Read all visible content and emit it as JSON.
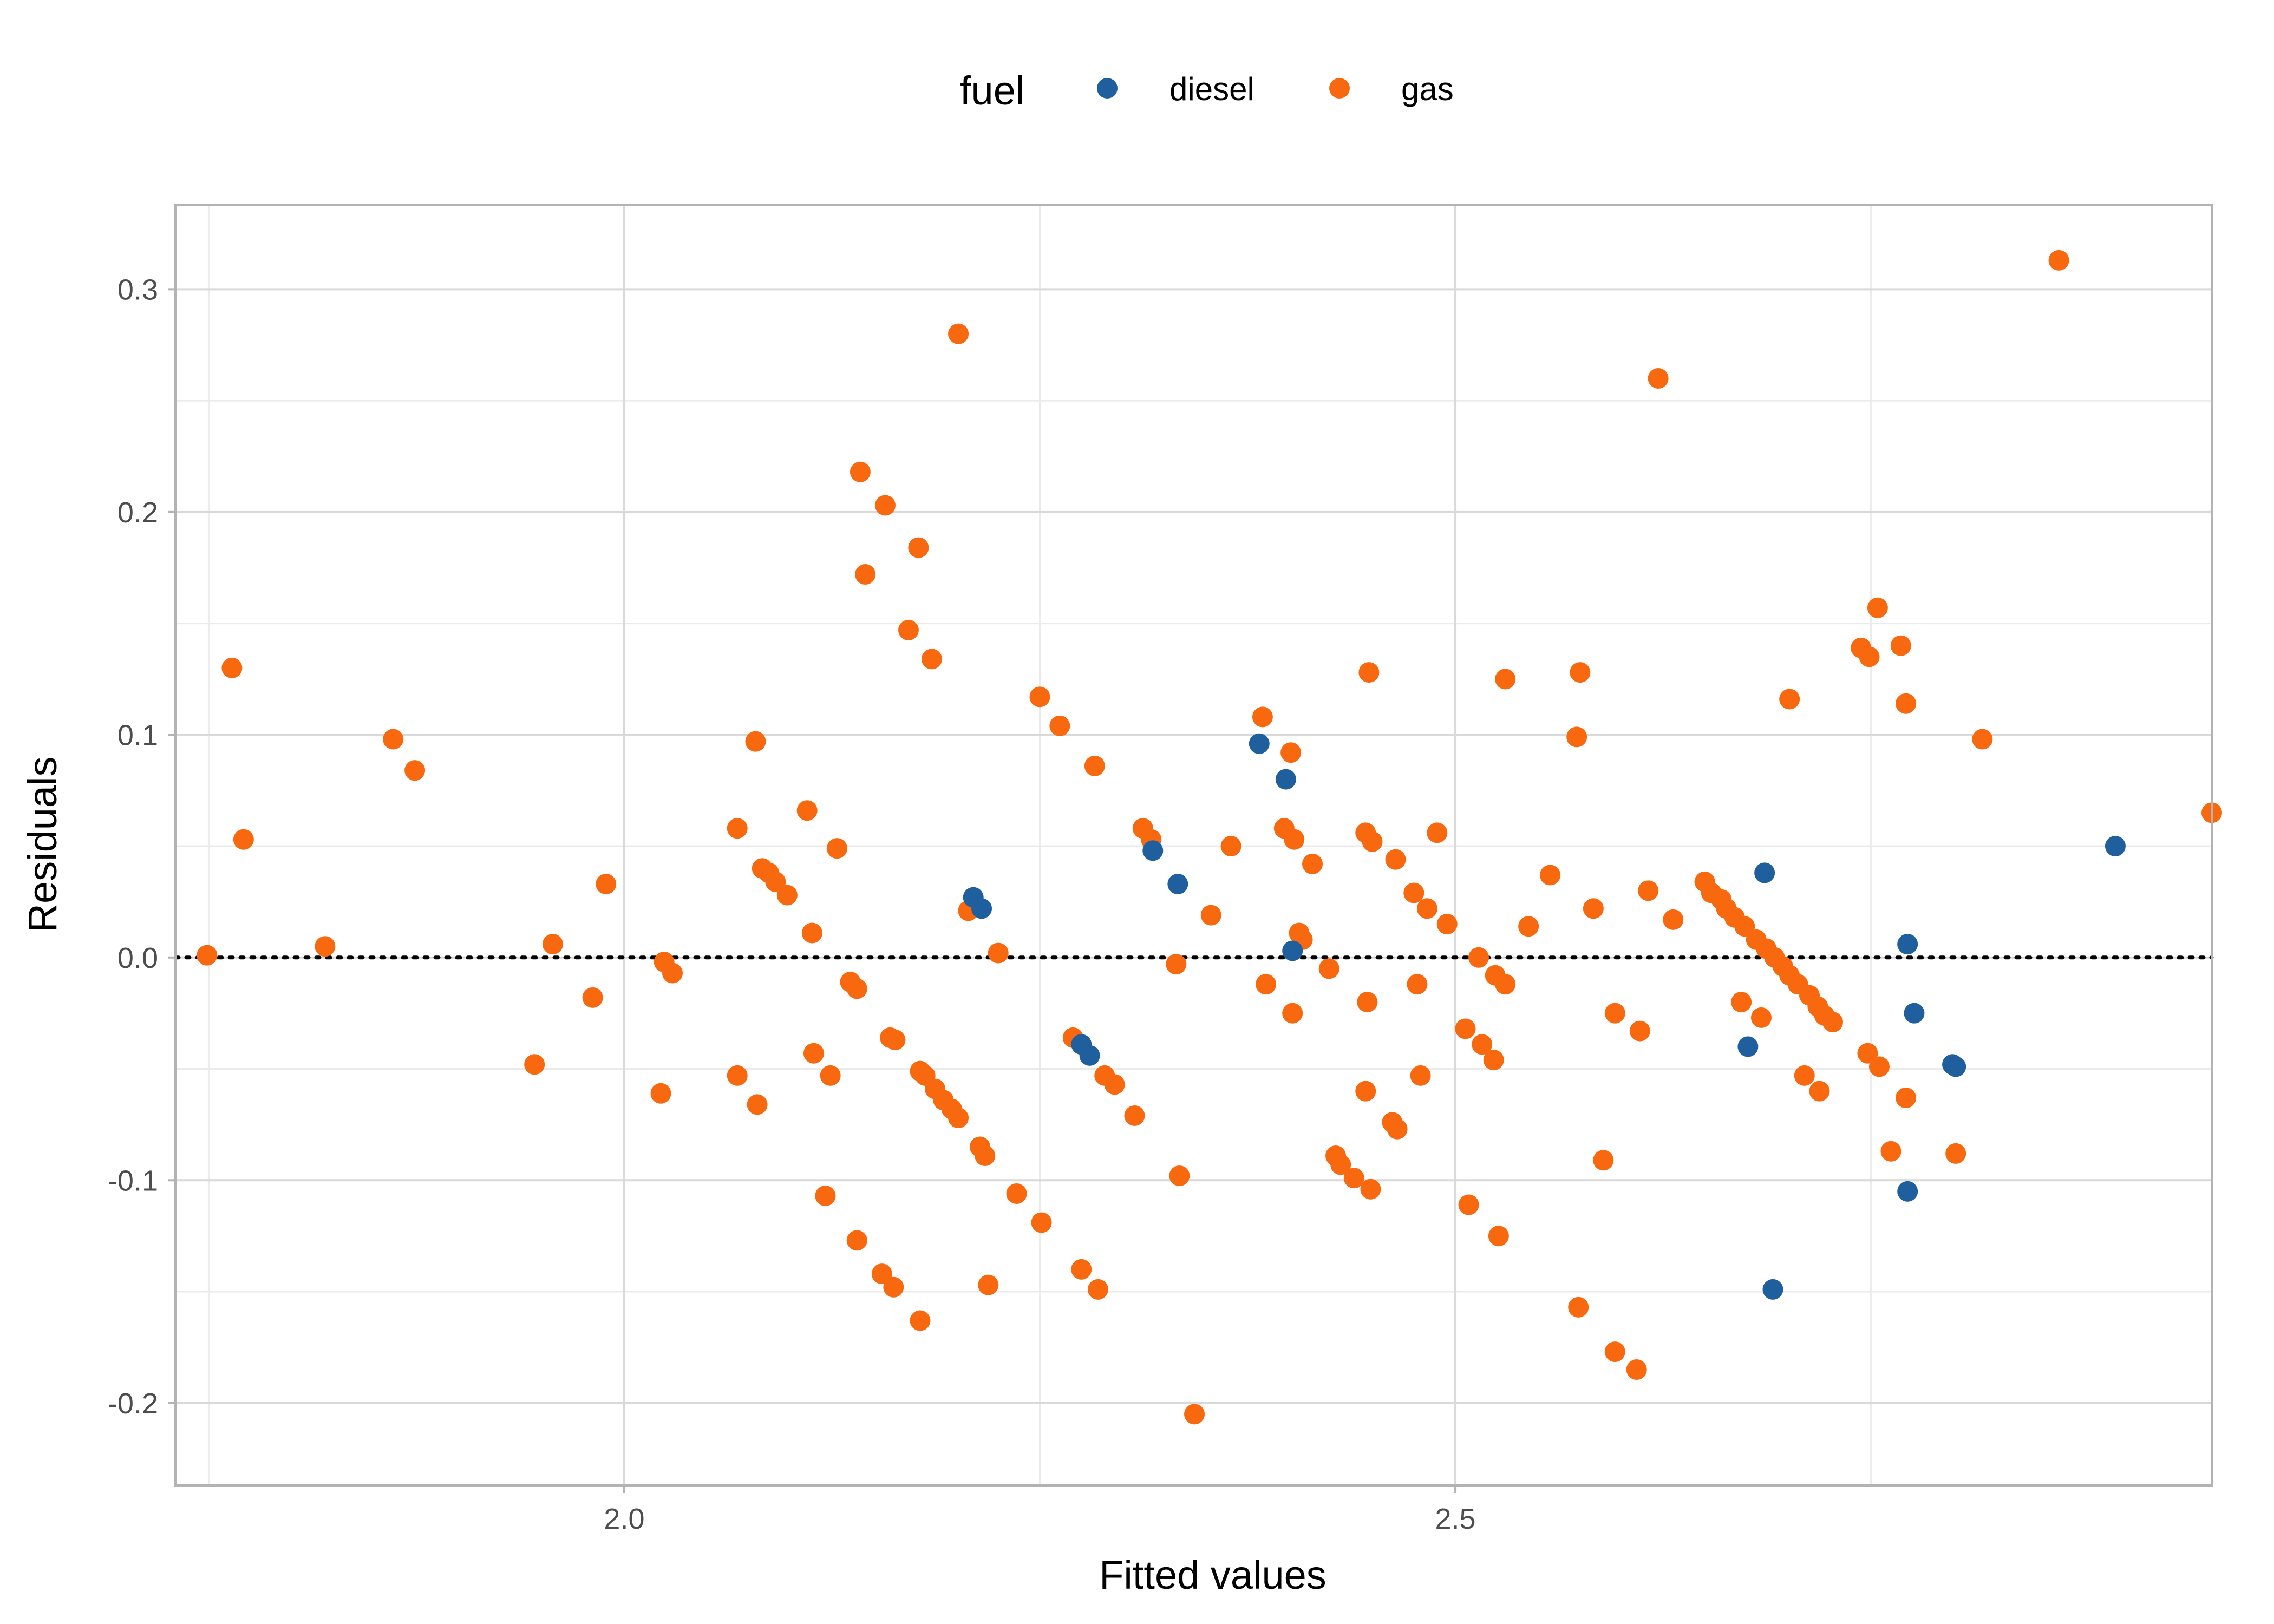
{
  "chart_data": {
    "type": "scatter",
    "xlabel": "Fitted values",
    "ylabel": "Residuals",
    "xlim": [
      1.73,
      2.955
    ],
    "ylim": [
      -0.237,
      0.338
    ],
    "x_ticks": [
      2.0,
      2.5
    ],
    "x_tick_labels": [
      "2.0",
      "2.5"
    ],
    "y_ticks": [
      -0.2,
      -0.1,
      0.0,
      0.1,
      0.2,
      0.3
    ],
    "y_tick_labels": [
      "-0.2",
      "-0.1",
      "0.0",
      "0.1",
      "0.2",
      "0.3"
    ],
    "grid": true,
    "reference_line": {
      "y": 0,
      "style": "dotted",
      "color": "#000000"
    },
    "legend": {
      "title": "fuel",
      "position": "top",
      "entries": [
        {
          "label": "diesel",
          "color": "#1f5f9e"
        },
        {
          "label": "gas",
          "color": "#f8680f"
        }
      ]
    },
    "series": [
      {
        "name": "diesel",
        "color": "#1f5f9e",
        "points": [
          [
            2.21,
            0.027
          ],
          [
            2.215,
            0.022
          ],
          [
            2.275,
            -0.039
          ],
          [
            2.28,
            -0.044
          ],
          [
            2.318,
            0.048
          ],
          [
            2.333,
            0.033
          ],
          [
            2.382,
            0.096
          ],
          [
            2.398,
            0.08
          ],
          [
            2.402,
            0.003
          ],
          [
            2.676,
            -0.04
          ],
          [
            2.686,
            0.038
          ],
          [
            2.691,
            -0.149
          ],
          [
            2.772,
            0.006
          ],
          [
            2.772,
            -0.105
          ],
          [
            2.776,
            -0.025
          ],
          [
            2.799,
            -0.048
          ],
          [
            2.801,
            -0.049
          ],
          [
            2.897,
            0.05
          ]
        ]
      },
      {
        "name": "gas",
        "color": "#f8680f",
        "points": [
          [
            1.749,
            0.001
          ],
          [
            1.764,
            0.13
          ],
          [
            1.771,
            0.053
          ],
          [
            1.82,
            0.005
          ],
          [
            1.861,
            0.098
          ],
          [
            1.874,
            0.084
          ],
          [
            1.946,
            -0.048
          ],
          [
            1.957,
            0.006
          ],
          [
            1.981,
            -0.018
          ],
          [
            1.989,
            0.033
          ],
          [
            2.022,
            -0.061
          ],
          [
            2.024,
            -0.002
          ],
          [
            2.029,
            -0.007
          ],
          [
            2.068,
            0.058
          ],
          [
            2.068,
            -0.053
          ],
          [
            2.079,
            0.097
          ],
          [
            2.08,
            -0.066
          ],
          [
            2.083,
            0.04
          ],
          [
            2.087,
            0.038
          ],
          [
            2.091,
            0.034
          ],
          [
            2.098,
            0.028
          ],
          [
            2.11,
            0.066
          ],
          [
            2.113,
            0.011
          ],
          [
            2.114,
            -0.043
          ],
          [
            2.124,
            -0.053
          ],
          [
            2.121,
            -0.107
          ],
          [
            2.128,
            0.049
          ],
          [
            2.136,
            -0.011
          ],
          [
            2.14,
            -0.014
          ],
          [
            2.142,
            0.218
          ],
          [
            2.145,
            0.172
          ],
          [
            2.14,
            -0.127
          ],
          [
            2.155,
            -0.142
          ],
          [
            2.157,
            0.203
          ],
          [
            2.16,
            -0.036
          ],
          [
            2.163,
            -0.037
          ],
          [
            2.162,
            -0.148
          ],
          [
            2.171,
            0.147
          ],
          [
            2.177,
            0.184
          ],
          [
            2.178,
            -0.051
          ],
          [
            2.181,
            -0.053
          ],
          [
            2.178,
            -0.163
          ],
          [
            2.185,
            0.134
          ],
          [
            2.187,
            -0.059
          ],
          [
            2.192,
            -0.064
          ],
          [
            2.197,
            -0.068
          ],
          [
            2.201,
            -0.072
          ],
          [
            2.201,
            0.28
          ],
          [
            2.207,
            0.021
          ],
          [
            2.214,
            -0.085
          ],
          [
            2.217,
            -0.089
          ],
          [
            2.219,
            -0.147
          ],
          [
            2.225,
            0.002
          ],
          [
            2.236,
            -0.106
          ],
          [
            2.25,
            0.117
          ],
          [
            2.251,
            -0.119
          ],
          [
            2.262,
            0.104
          ],
          [
            2.27,
            -0.036
          ],
          [
            2.275,
            -0.14
          ],
          [
            2.283,
            0.086
          ],
          [
            2.285,
            -0.149
          ],
          [
            2.289,
            -0.053
          ],
          [
            2.295,
            -0.057
          ],
          [
            2.307,
            -0.071
          ],
          [
            2.312,
            0.058
          ],
          [
            2.317,
            0.053
          ],
          [
            2.332,
            -0.003
          ],
          [
            2.334,
            -0.098
          ],
          [
            2.343,
            -0.205
          ],
          [
            2.353,
            0.019
          ],
          [
            2.365,
            0.05
          ],
          [
            2.384,
            0.108
          ],
          [
            2.386,
            -0.012
          ],
          [
            2.397,
            0.058
          ],
          [
            2.401,
            0.092
          ],
          [
            2.402,
            -0.025
          ],
          [
            2.403,
            0.053
          ],
          [
            2.406,
            0.011
          ],
          [
            2.408,
            0.008
          ],
          [
            2.414,
            0.042
          ],
          [
            2.424,
            -0.005
          ],
          [
            2.428,
            -0.089
          ],
          [
            2.431,
            -0.093
          ],
          [
            2.439,
            -0.099
          ],
          [
            2.448,
            0.128
          ],
          [
            2.446,
            0.056
          ],
          [
            2.45,
            0.052
          ],
          [
            2.446,
            -0.06
          ],
          [
            2.447,
            -0.02
          ],
          [
            2.449,
            -0.104
          ],
          [
            2.464,
            0.044
          ],
          [
            2.462,
            -0.074
          ],
          [
            2.465,
            -0.077
          ],
          [
            2.475,
            0.029
          ],
          [
            2.477,
            -0.012
          ],
          [
            2.479,
            -0.053
          ],
          [
            2.483,
            0.022
          ],
          [
            2.489,
            0.056
          ],
          [
            2.495,
            0.015
          ],
          [
            2.506,
            -0.032
          ],
          [
            2.508,
            -0.111
          ],
          [
            2.514,
            0.0
          ],
          [
            2.516,
            -0.039
          ],
          [
            2.524,
            -0.008
          ],
          [
            2.523,
            -0.046
          ],
          [
            2.526,
            -0.125
          ],
          [
            2.53,
            0.125
          ],
          [
            2.53,
            -0.012
          ],
          [
            2.544,
            0.014
          ],
          [
            2.557,
            0.037
          ],
          [
            2.575,
            0.128
          ],
          [
            2.573,
            0.099
          ],
          [
            2.574,
            -0.157
          ],
          [
            2.583,
            0.022
          ],
          [
            2.589,
            -0.091
          ],
          [
            2.596,
            -0.025
          ],
          [
            2.596,
            -0.177
          ],
          [
            2.609,
            -0.185
          ],
          [
            2.611,
            -0.033
          ],
          [
            2.616,
            0.03
          ],
          [
            2.622,
            0.26
          ],
          [
            2.631,
            0.017
          ],
          [
            2.65,
            0.034
          ],
          [
            2.654,
            0.029
          ],
          [
            2.66,
            0.026
          ],
          [
            2.663,
            0.022
          ],
          [
            2.668,
            0.018
          ],
          [
            2.674,
            0.014
          ],
          [
            2.681,
            0.008
          ],
          [
            2.687,
            0.004
          ],
          [
            2.692,
            0.0
          ],
          [
            2.697,
            -0.004
          ],
          [
            2.701,
            -0.008
          ],
          [
            2.706,
            -0.012
          ],
          [
            2.713,
            -0.017
          ],
          [
            2.718,
            -0.022
          ],
          [
            2.722,
            -0.026
          ],
          [
            2.727,
            -0.029
          ],
          [
            2.672,
            -0.02
          ],
          [
            2.684,
            -0.027
          ],
          [
            2.701,
            0.116
          ],
          [
            2.71,
            -0.053
          ],
          [
            2.719,
            -0.06
          ],
          [
            2.744,
            0.139
          ],
          [
            2.749,
            0.135
          ],
          [
            2.754,
            0.157
          ],
          [
            2.768,
            0.14
          ],
          [
            2.748,
            -0.043
          ],
          [
            2.755,
            -0.049
          ],
          [
            2.762,
            -0.087
          ],
          [
            2.771,
            0.114
          ],
          [
            2.771,
            -0.063
          ],
          [
            2.801,
            -0.088
          ],
          [
            2.817,
            0.098
          ],
          [
            2.863,
            0.313
          ],
          [
            2.955,
            0.065
          ]
        ]
      }
    ]
  }
}
